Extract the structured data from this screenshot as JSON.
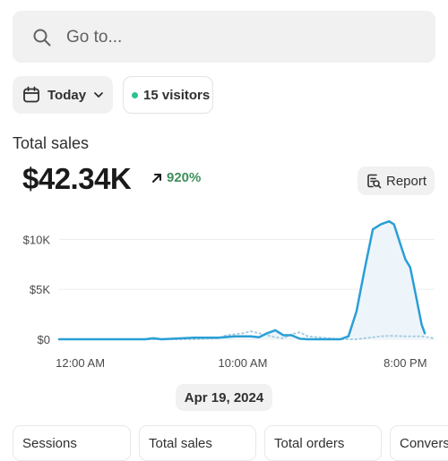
{
  "search": {
    "placeholder": "Go to...",
    "icon": "search-icon"
  },
  "filters": {
    "date_label": "Today",
    "visitors_label": "15 visitors",
    "visitors_dot_color": "#29c48a"
  },
  "metric": {
    "title": "Total sales",
    "value": "$42.34K",
    "change": "920%",
    "change_color": "#3f8f5c"
  },
  "report_button": {
    "label": "Report"
  },
  "chart_data": {
    "type": "line",
    "y_tick_labels": [
      "$10K",
      "$5K",
      "$0"
    ],
    "y_ticks": [
      10000,
      5000,
      0
    ],
    "ylim": [
      0,
      12000
    ],
    "x_tick_labels": [
      "12:00 AM",
      "10:00 AM",
      "8:00 PM"
    ],
    "x_ticks": [
      0,
      10,
      20
    ],
    "xlim": [
      -1.3,
      21.8
    ],
    "grid": true,
    "series": [
      {
        "style": "solid",
        "color": "#2a9fd6",
        "x": [
          -1.3,
          4.0,
          4.5,
          5.0,
          7.0,
          8.5,
          9.5,
          10.5,
          11.0,
          11.5,
          12.0,
          12.5,
          13.0,
          13.5,
          14.0,
          15.0,
          16.0,
          16.5,
          17.0,
          17.5,
          18.0,
          18.5,
          19.0,
          19.3,
          19.7,
          20.0,
          20.3,
          20.7,
          21.0,
          21.2
        ],
        "y": [
          0,
          0,
          100,
          0,
          150,
          150,
          300,
          300,
          200,
          600,
          900,
          400,
          400,
          50,
          0,
          0,
          0,
          300,
          2800,
          7000,
          11000,
          11500,
          11800,
          11500,
          9500,
          8000,
          7200,
          4000,
          1500,
          600
        ]
      },
      {
        "style": "dotted",
        "color": "#a7cce0",
        "x": [
          -1.3,
          5.5,
          7.0,
          8.5,
          9.0,
          10.0,
          10.5,
          11.0,
          12.0,
          12.5,
          13.0,
          13.5,
          14.0,
          16.0,
          17.0,
          17.5,
          18.0,
          18.5,
          19.0,
          20.0,
          21.0,
          21.8
        ],
        "y": [
          0,
          0,
          0,
          100,
          400,
          600,
          800,
          600,
          200,
          100,
          500,
          700,
          300,
          0,
          0,
          100,
          200,
          300,
          350,
          300,
          300,
          100
        ]
      }
    ]
  },
  "date_chip": {
    "label": "Apr 19, 2024"
  },
  "tabs": [
    {
      "label": "Sessions",
      "active": false
    },
    {
      "label": "Total sales",
      "active": true
    },
    {
      "label": "Total orders",
      "active": false
    },
    {
      "label": "Conversion rate",
      "active": false
    }
  ]
}
